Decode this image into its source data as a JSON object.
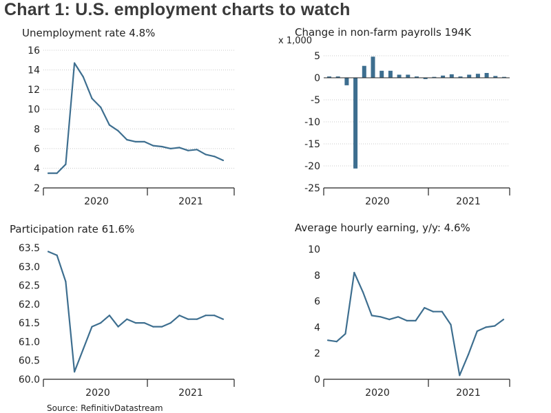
{
  "title": "Chart 1: U.S. employment charts to watch",
  "source": "Source: RefinitivDatastream",
  "colors": {
    "line": "#3d6e8f",
    "bar": "#3d6e8f",
    "grid": "#c8c8c8",
    "axis": "#222222"
  },
  "chart_data": [
    {
      "type": "line",
      "title": "Unemployment rate 4.8%",
      "xlabel": "",
      "ylabel": "",
      "x_ticks": [
        "2020",
        "2021"
      ],
      "ylim": [
        2,
        16
      ],
      "yticks": [
        2,
        4,
        6,
        8,
        10,
        12,
        14,
        16
      ],
      "grid": true,
      "values": [
        3.5,
        3.5,
        4.4,
        14.7,
        13.3,
        11.1,
        10.2,
        8.4,
        7.8,
        6.9,
        6.7,
        6.7,
        6.3,
        6.2,
        6.0,
        6.1,
        5.8,
        5.9,
        5.4,
        5.2,
        4.8
      ]
    },
    {
      "type": "bar",
      "title": "Change in non-farm payrolls 194K",
      "yunit": "x 1,000",
      "xlabel": "",
      "ylabel": "",
      "x_ticks": [
        "2020",
        "2021"
      ],
      "ylim": [
        -25,
        5
      ],
      "yticks": [
        -25,
        -20,
        -15,
        -10,
        -5,
        0,
        5
      ],
      "grid": true,
      "values": [
        0.3,
        0.3,
        -1.7,
        -20.6,
        2.7,
        4.8,
        1.6,
        1.6,
        0.7,
        0.7,
        0.3,
        -0.3,
        0.2,
        0.5,
        0.8,
        0.3,
        0.7,
        0.9,
        1.1,
        0.4,
        0.2
      ]
    },
    {
      "type": "line",
      "title": "Participation rate 61.6%",
      "xlabel": "",
      "ylabel": "",
      "x_ticks": [
        "2020",
        "2021"
      ],
      "ylim": [
        60.0,
        63.5
      ],
      "yticks": [
        "60.0",
        "60.5",
        "61.0",
        "61.5",
        "62.0",
        "62.5",
        "63.0",
        "63.5"
      ],
      "grid": false,
      "values": [
        63.4,
        63.3,
        62.6,
        60.2,
        60.8,
        61.4,
        61.5,
        61.7,
        61.4,
        61.6,
        61.5,
        61.5,
        61.4,
        61.4,
        61.5,
        61.7,
        61.6,
        61.6,
        61.7,
        61.7,
        61.6
      ]
    },
    {
      "type": "line",
      "title": "Average hourly earning, y/y: 4.6%",
      "xlabel": "",
      "ylabel": "",
      "x_ticks": [
        "2020",
        "2021"
      ],
      "ylim": [
        0,
        10
      ],
      "yticks": [
        0,
        2,
        4,
        6,
        8,
        10
      ],
      "grid": false,
      "values": [
        3.0,
        2.9,
        3.5,
        8.2,
        6.7,
        4.9,
        4.8,
        4.6,
        4.8,
        4.5,
        4.5,
        5.5,
        5.2,
        5.2,
        4.2,
        0.3,
        1.9,
        3.7,
        4.0,
        4.1,
        4.6
      ]
    }
  ]
}
